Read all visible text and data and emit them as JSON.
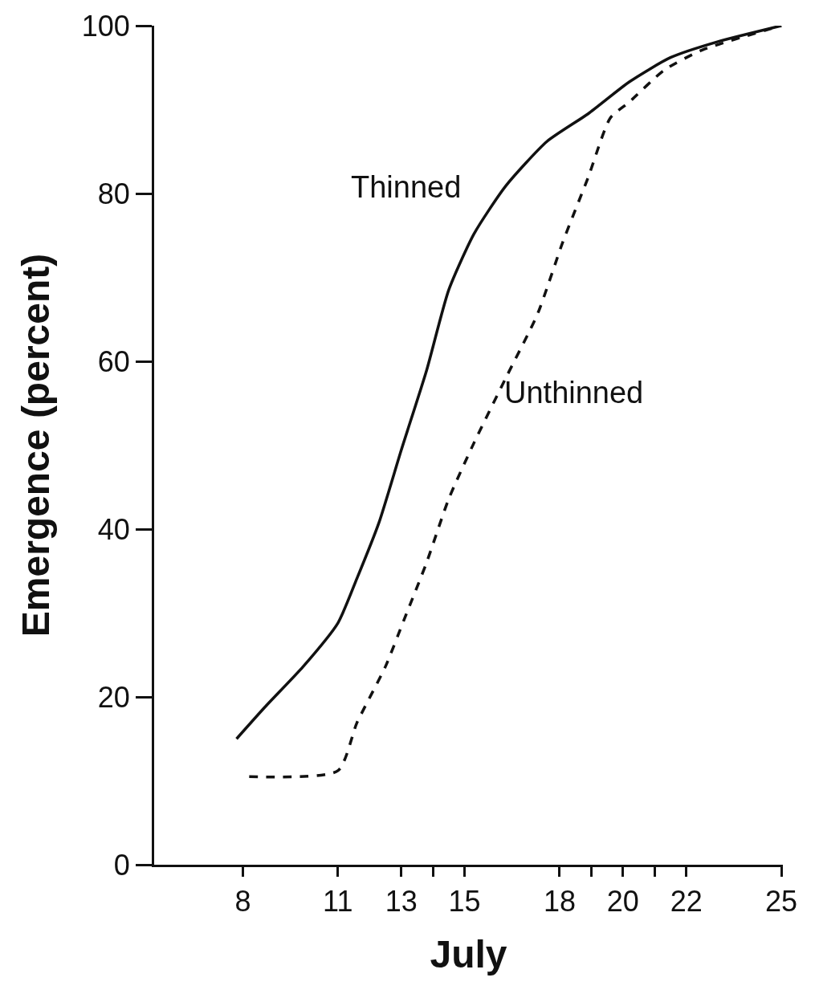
{
  "chart_data": {
    "type": "line",
    "xlabel": "July",
    "ylabel": "Emergence (percent)",
    "xlim": [
      5.2,
      25.05
    ],
    "ylim": [
      0,
      100
    ],
    "xticks": [
      8,
      11,
      13,
      {
        "value": 14,
        "label": null
      },
      15,
      18,
      {
        "value": 19,
        "label": null
      },
      20,
      {
        "value": 21,
        "label": null
      },
      22,
      25
    ],
    "yticks": [
      0,
      20,
      40,
      60,
      80,
      100
    ],
    "marker": "none",
    "series": [
      {
        "color": "#111111",
        "line_style": "solid",
        "x": [
          7.8,
          8.7,
          9.9,
          11,
          11.6,
          12.3,
          13,
          13.8,
          14.5,
          15.3,
          16.3,
          17.6,
          18.9,
          20.2,
          21.5,
          23.0,
          25
        ],
        "values": [
          15.0,
          18.8,
          23.6,
          28.8,
          34.1,
          40.8,
          49.4,
          58.9,
          68.5,
          75.2,
          80.9,
          86.2,
          89.5,
          93.3,
          96.2,
          98.1,
          100
        ]
      },
      {
        "color": "#111111",
        "line_style": "dashed",
        "x": [
          8.2,
          11,
          11.6,
          12.5,
          13.1,
          13.8,
          14.5,
          15.3,
          16.3,
          17.3,
          18.1,
          18.9,
          19.6,
          20.2,
          21.3,
          22.5,
          25
        ],
        "values": [
          10.5,
          11.2,
          16.9,
          23.6,
          29.3,
          36.0,
          43.6,
          50.3,
          58.0,
          65.6,
          74.2,
          81.9,
          89.0,
          90.9,
          94.7,
          97.1,
          100
        ]
      }
    ],
    "annotations": [
      "Thinned",
      "Unthinned"
    ]
  }
}
